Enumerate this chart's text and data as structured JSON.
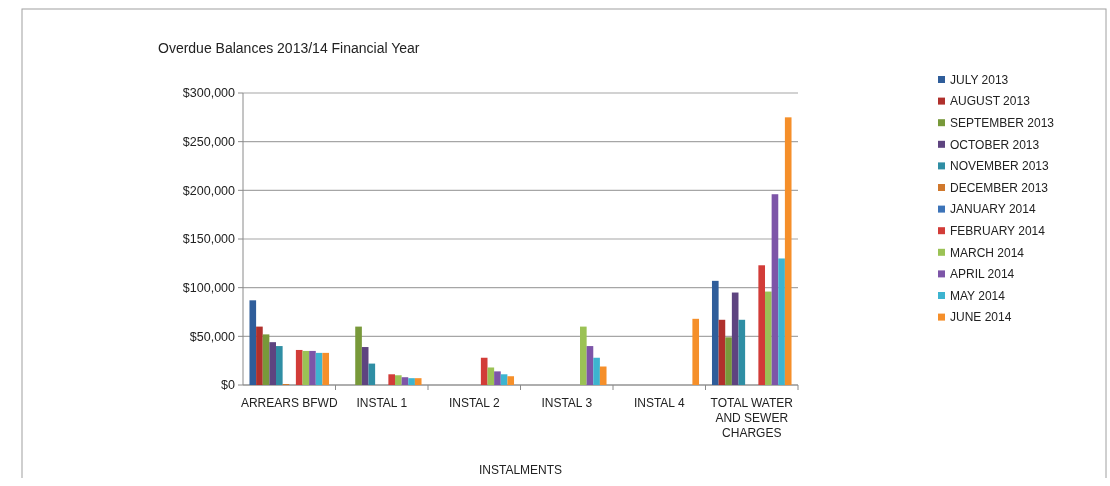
{
  "chart_data": {
    "type": "bar",
    "title": "Overdue Balances 2013/14  Financial Year",
    "xlabel": "INSTALMENTS",
    "categories": [
      "ARREARS BFWD",
      "INSTAL 1",
      "INSTAL 2",
      "INSTAL 3",
      "INSTAL 4",
      "TOTAL WATER AND SEWER CHARGES"
    ],
    "series": [
      {
        "name": "JULY 2013",
        "color": "#2f5d9a",
        "values": [
          87000,
          0,
          0,
          0,
          0,
          107000
        ]
      },
      {
        "name": "AUGUST 2013",
        "color": "#b0302c",
        "values": [
          60000,
          0,
          0,
          0,
          0,
          67000
        ]
      },
      {
        "name": "SEPTEMBER 2013",
        "color": "#78993a",
        "values": [
          52000,
          60000,
          0,
          0,
          0,
          49000
        ]
      },
      {
        "name": "OCTOBER 2013",
        "color": "#5e4480",
        "values": [
          44000,
          39000,
          0,
          0,
          0,
          95000
        ]
      },
      {
        "name": "NOVEMBER 2013",
        "color": "#2f8ea4",
        "values": [
          40000,
          22000,
          0,
          0,
          0,
          67000
        ]
      },
      {
        "name": "DECEMBER 2013",
        "color": "#d0782c",
        "values": [
          1000,
          0,
          0,
          0,
          0,
          0
        ]
      },
      {
        "name": "JANUARY 2014",
        "color": "#3c73b8",
        "values": [
          0,
          0,
          0,
          0,
          0,
          0
        ]
      },
      {
        "name": "FEBRUARY 2014",
        "color": "#d23c38",
        "values": [
          36000,
          11000,
          28000,
          0,
          0,
          123000
        ]
      },
      {
        "name": "MARCH 2014",
        "color": "#9bc255",
        "values": [
          35000,
          10000,
          18000,
          60000,
          0,
          96000
        ]
      },
      {
        "name": "APRIL 2014",
        "color": "#7d55a8",
        "values": [
          35000,
          8000,
          14000,
          40000,
          0,
          196000
        ]
      },
      {
        "name": "MAY 2014",
        "color": "#3db4d0",
        "values": [
          33000,
          7000,
          11000,
          28000,
          0,
          130000
        ]
      },
      {
        "name": "JUNE 2014",
        "color": "#f58f2a",
        "values": [
          33000,
          7000,
          9000,
          19000,
          68000,
          275000
        ]
      }
    ],
    "ylim": [
      0,
      300000
    ],
    "yticks": [
      {
        "value": 0,
        "label": "$0"
      },
      {
        "value": 50000,
        "label": "$50,000"
      },
      {
        "value": 100000,
        "label": "$100,000"
      },
      {
        "value": 150000,
        "label": "$150,000"
      },
      {
        "value": 200000,
        "label": "$200,000"
      },
      {
        "value": 250000,
        "label": "$250,000"
      },
      {
        "value": 300000,
        "label": "$300,000"
      }
    ],
    "grid": "y",
    "legend": "right"
  }
}
